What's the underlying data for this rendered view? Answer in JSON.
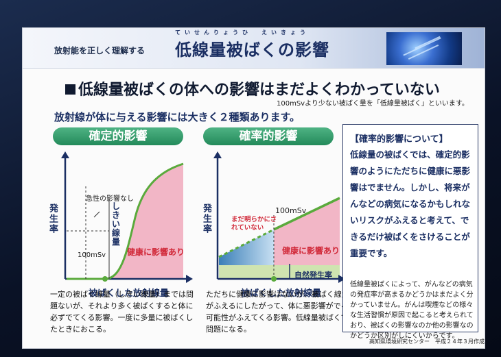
{
  "header": {
    "subject": "放射能を正しく理解する",
    "title": "低線量被ばくの影響",
    "title_ruby": "ていせんりょうひ　えいきょう"
  },
  "headline": "低線量被ばくの体への影響はまだよくわかっていない",
  "headline_note": "100mSvより少ない被ばく量を「低線量被ばく」といいます。",
  "intro": "放射線が体に与える影響には大きく２種類あります。",
  "deterministic": {
    "title": "確定的影響",
    "y_label": "発生率",
    "x_label": "被ばくした放射線量",
    "no_sudden": "急性の影響なし",
    "threshold": "しきい線量",
    "dose_mark": "100mSv",
    "health": "健康に影響あり",
    "description": "一定の被ばく線量（しきい線量）までは問題ないが、それより多く被ばくすると体に必ずでてくる影響。一度に多量に被ばくしたときにおこる。"
  },
  "probabilistic": {
    "title": "確率的影響",
    "y_label": "発生率",
    "x_label": "被ばくした放射線量",
    "unclear": "まだ明らかにされていない",
    "dose_mark": "100mSv",
    "health": "健康に影響あり",
    "natural": "自然発生率",
    "description": "ただちに健康に影響はないが、被ばく線量がふえるにしたがって、体に悪影響がでる可能性がふえてくる影響。低線量被ばくで問題になる。"
  },
  "side": {
    "title": "【確率的影響について】",
    "body": "低線量の被ばくでは、確定的影響のようにただちに健康に悪影響はでません。しかし、将来がんなどの病気になるかもしれないリスクがふえると考えて、できるだけ被ばくをさけることが重要です。",
    "note": "低線量被ばくによって、がんなどの病気の発症率が高まるかどうかはまだよく分かっていません。がんは喫煙などの様々な生活習慣が原因で起こると考えられており、被ばくの影響なのか他の影響なのかどうか区別がしにくいからです。"
  },
  "credit": "高知県環境研究センター　平成２４年３月作成",
  "colors": {
    "accent_green": "#238a5a",
    "pink_zone": "#f2b6c6",
    "navy_text": "#1b2f63",
    "red_text": "#d12a3a"
  }
}
